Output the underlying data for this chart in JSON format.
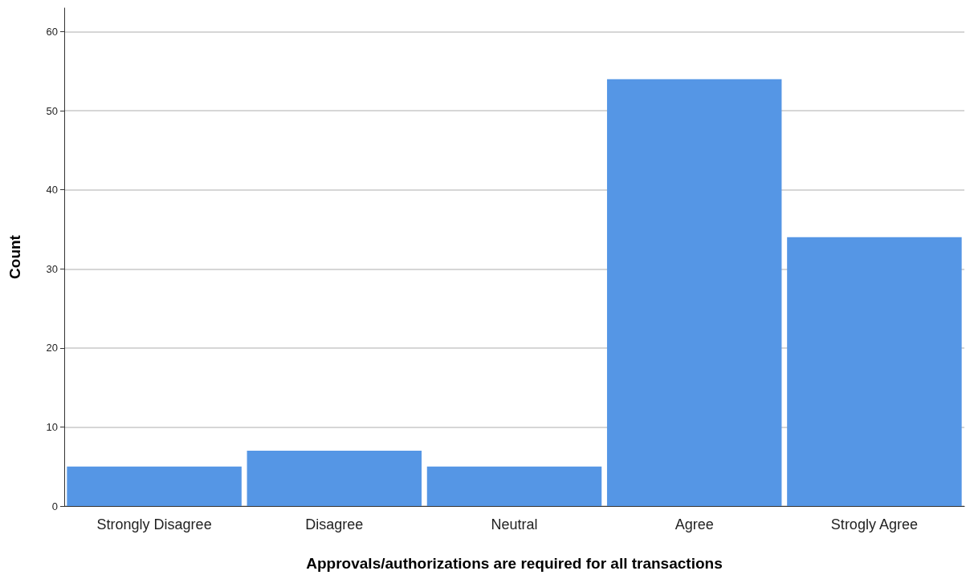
{
  "chart_data": {
    "type": "bar",
    "xlabel": "Approvals/authorizations are required for all transactions",
    "ylabel": "Count",
    "categories": [
      "Strongly Disagree",
      "Disagree",
      "Neutral",
      "Agree",
      "Strogly Agree"
    ],
    "values": [
      5,
      7,
      5,
      54,
      34
    ],
    "color": "#5596e5",
    "ylim": [
      0,
      63
    ],
    "yticks": [
      0,
      10,
      20,
      30,
      40,
      50,
      60
    ],
    "grid": "y"
  }
}
